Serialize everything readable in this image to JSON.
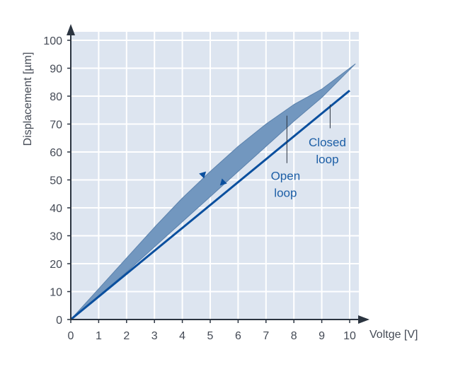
{
  "chart_data": {
    "type": "line",
    "title": "",
    "xlabel": "Voltge [V]",
    "ylabel": "Displacement [µm]",
    "xlim": [
      0,
      10
    ],
    "ylim": [
      0,
      100
    ],
    "x_ticks": [
      "0",
      "1",
      "2",
      "3",
      "4",
      "5",
      "6",
      "7",
      "8",
      "9",
      "10"
    ],
    "y_ticks": [
      "0",
      "10",
      "20",
      "30",
      "40",
      "50",
      "60",
      "70",
      "80",
      "90",
      "100"
    ],
    "grid": true,
    "series": [
      {
        "name": "Closed loop",
        "style": "line",
        "points": [
          [
            0,
            0
          ],
          [
            10,
            82
          ]
        ]
      },
      {
        "name": "Open loop",
        "style": "hysteresis-band",
        "upper": [
          [
            0,
            0
          ],
          [
            1,
            11
          ],
          [
            2,
            22
          ],
          [
            3,
            33
          ],
          [
            4,
            43.5
          ],
          [
            5,
            53
          ],
          [
            6,
            62
          ],
          [
            7,
            70
          ],
          [
            8,
            77
          ],
          [
            9,
            82.5
          ],
          [
            10.2,
            91.5
          ]
        ],
        "lower": [
          [
            0,
            0
          ],
          [
            1,
            8.5
          ],
          [
            2,
            17
          ],
          [
            3,
            26
          ],
          [
            4,
            35
          ],
          [
            5,
            44
          ],
          [
            6,
            53
          ],
          [
            7,
            62
          ],
          [
            8,
            71
          ],
          [
            9,
            79.5
          ],
          [
            10.2,
            91.5
          ]
        ]
      }
    ],
    "annotations": [
      {
        "lines": [
          "Open",
          "loop"
        ],
        "x": 7.7,
        "y": 50
      },
      {
        "lines": [
          "Closed",
          "loop"
        ],
        "x": 9.2,
        "y": 62
      }
    ],
    "colors": {
      "plot_background": "#dde5f0",
      "grid": "#ffffff",
      "closed_loop_line": "#0a4f9e",
      "open_loop_fill": "#7297bf",
      "open_loop_edge": "#5b82ad",
      "axis": "#2b3440",
      "annotation_text": "#1d5fa6"
    }
  }
}
